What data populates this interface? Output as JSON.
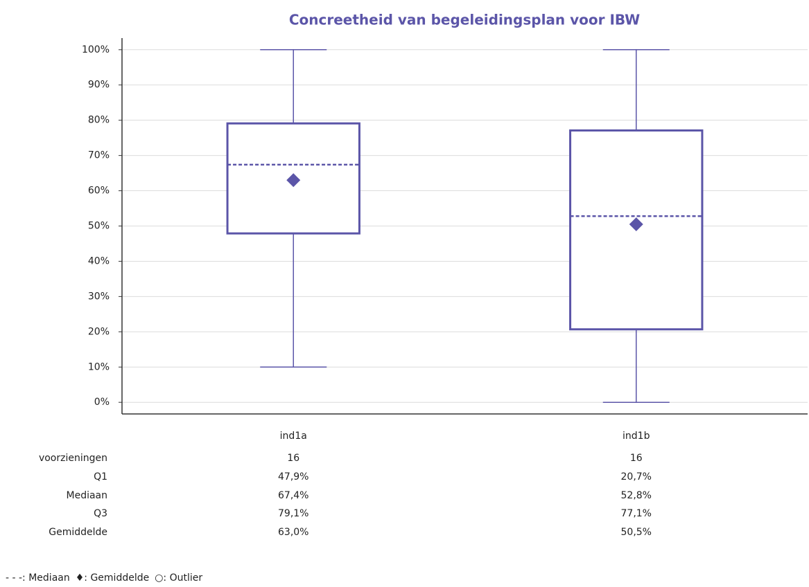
{
  "chart_data": {
    "type": "box",
    "title": "Concreetheid van begeleidingsplan voor IBW",
    "categories": [
      "ind1a",
      "ind1b"
    ],
    "color": "#5b55a8",
    "grid": true,
    "ylim": [
      -3.3,
      103.3
    ],
    "yticks": [
      {
        "value": 0,
        "label": "0%"
      },
      {
        "value": 10,
        "label": "10%"
      },
      {
        "value": 20,
        "label": "20%"
      },
      {
        "value": 30,
        "label": "30%"
      },
      {
        "value": 40,
        "label": "40%"
      },
      {
        "value": 50,
        "label": "50%"
      },
      {
        "value": 60,
        "label": "60%"
      },
      {
        "value": 70,
        "label": "70%"
      },
      {
        "value": 80,
        "label": "80%"
      },
      {
        "value": 90,
        "label": "90%"
      },
      {
        "value": 100,
        "label": "100%"
      }
    ],
    "boxes": [
      {
        "min": 10,
        "q1": 47.9,
        "median": 67.4,
        "q3": 79.1,
        "max": 100,
        "mean": 63.0,
        "count": 16,
        "value_labels": {
          "q1": "47,9%",
          "median": "67,4%",
          "q3": "79,1%",
          "mean": "63,0%"
        }
      },
      {
        "min": 0,
        "q1": 20.7,
        "median": 52.8,
        "q3": 77.1,
        "max": 100,
        "mean": 50.5,
        "count": 16,
        "value_labels": {
          "q1": "20,7%",
          "median": "52,8%",
          "q3": "77,1%",
          "mean": "50,5%"
        }
      }
    ],
    "stat_labels": [
      "voorzieningen",
      "Q1",
      "Mediaan",
      "Q3",
      "Gemiddelde"
    ],
    "legend": [
      "- - -: Mediaan",
      "♦: Gemiddelde",
      "○: Outlier"
    ]
  }
}
